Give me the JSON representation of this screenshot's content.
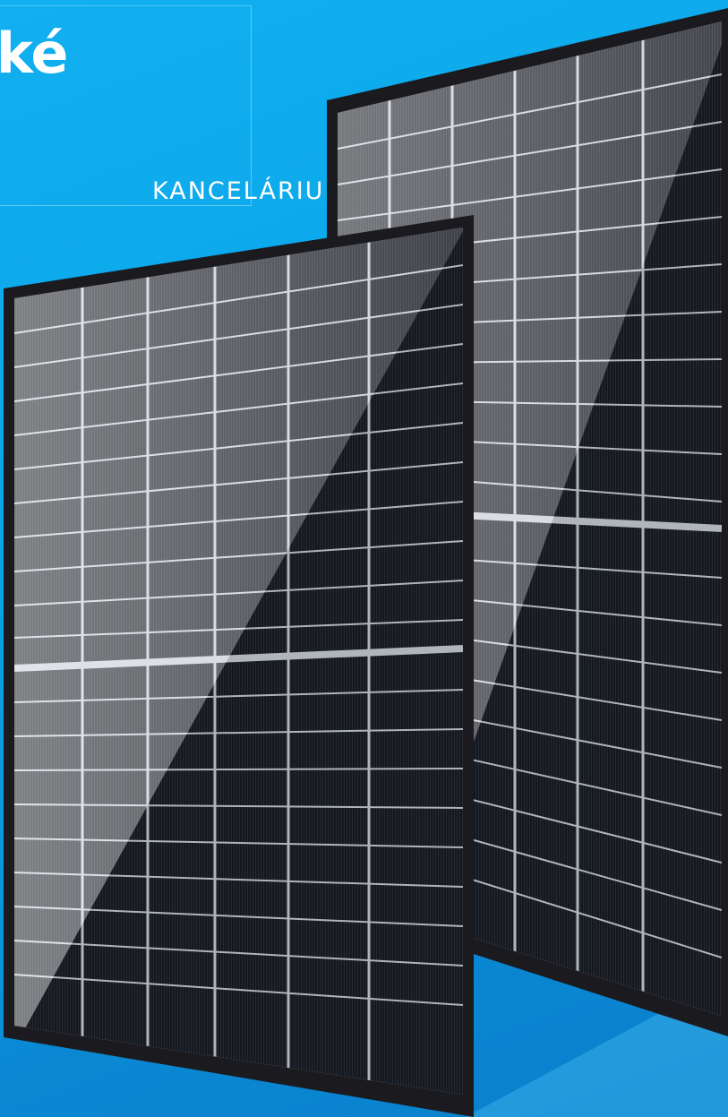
{
  "headline": "cké",
  "subheadline": "KANCELÁRIU",
  "colors": {
    "background": "#0aa6ea",
    "frame": "#1b1b1f",
    "cell": "#1a1d24",
    "busbar": "#c9ced6",
    "text": "#ffffff"
  },
  "panels": [
    {
      "name": "back-solar-panel",
      "columns": 6,
      "rows_per_half": 10
    },
    {
      "name": "front-solar-panel",
      "columns": 6,
      "rows_per_half": 10
    }
  ]
}
